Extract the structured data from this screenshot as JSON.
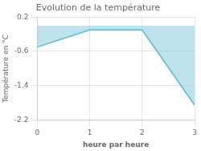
{
  "chart_data": {
    "type": "line",
    "title": "Evolution de la température",
    "xlabel": "heure par heure",
    "ylabel": "Température en °C",
    "x": [
      0,
      1,
      2,
      3
    ],
    "values": [
      -0.5,
      -0.1,
      -0.1,
      -1.85
    ],
    "color": "#5ab8d0",
    "xlim": [
      0,
      3
    ],
    "ylim": [
      -2.2,
      0.2
    ],
    "xticks": [
      0,
      1,
      2,
      3
    ],
    "yticks": [
      0.2,
      -0.6,
      -1.4,
      -2.2
    ],
    "grid": true
  }
}
